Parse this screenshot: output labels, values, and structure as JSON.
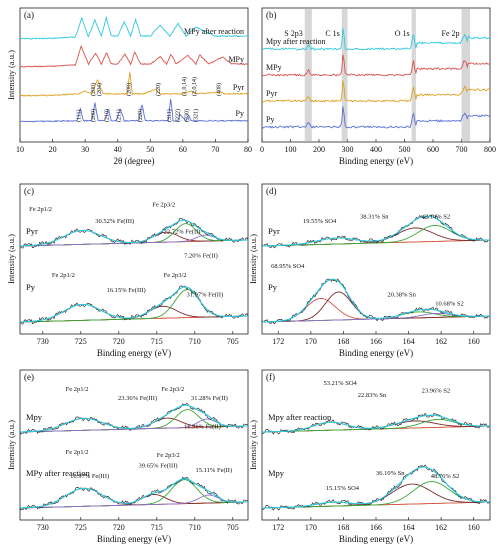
{
  "chart_data": [
    {
      "panel": "(a)",
      "type": "line",
      "xlabel": "2θ (degree)",
      "ylabel": "Intensity (a.u.)",
      "xlim": [
        10,
        80
      ],
      "xticks": [
        10,
        20,
        30,
        40,
        50,
        60,
        70,
        80
      ],
      "series": [
        {
          "name": "MPy after reaction",
          "color": "#2ec8e0",
          "x": [
            10,
            20,
            27,
            29,
            31,
            33,
            35,
            36.5,
            38,
            40,
            42,
            44,
            45.5,
            47,
            50,
            53,
            56,
            58.5,
            61,
            64,
            70,
            80
          ],
          "y": [
            0.3,
            0.35,
            0.5,
            2.6,
            0.5,
            2.4,
            0.6,
            2.7,
            0.6,
            0.6,
            2.2,
            0.6,
            2.5,
            0.6,
            0.6,
            1.8,
            0.6,
            2.0,
            0.6,
            1.6,
            0.6,
            0.6
          ]
        },
        {
          "name": "MPy",
          "color": "#d9534f",
          "x": [
            10,
            20,
            27,
            28.8,
            31,
            33.2,
            35,
            36.6,
            38,
            40,
            42.2,
            44,
            45.2,
            47,
            50,
            53,
            55,
            56.3,
            58,
            61.5,
            64,
            65.2,
            68,
            72.2,
            75,
            80
          ],
          "y": [
            0.3,
            0.35,
            0.5,
            2.6,
            0.6,
            1.8,
            0.6,
            1.9,
            0.6,
            0.6,
            1.7,
            0.6,
            2.0,
            0.6,
            0.6,
            1.4,
            0.6,
            1.7,
            0.6,
            1.6,
            0.6,
            1.6,
            0.6,
            1.4,
            0.6,
            0.6
          ]
        },
        {
          "name": "Pyr",
          "color": "#e0a020",
          "x": [
            10,
            20,
            28,
            30,
            32,
            33.8,
            35.5,
            40,
            43,
            43.7,
            44.5,
            48,
            51.7,
            53,
            60,
            62.5,
            64,
            71.5,
            73,
            80
          ],
          "y": [
            0.2,
            0.25,
            0.4,
            0.7,
            0.4,
            2.0,
            0.4,
            0.4,
            0.4,
            2.9,
            0.4,
            0.4,
            0.9,
            0.4,
            0.4,
            0.7,
            0.4,
            0.6,
            0.4,
            0.4
          ]
        },
        {
          "name": "Py",
          "color": "#5a6fd6",
          "x": [
            10,
            20,
            27.5,
            28.5,
            29.5,
            32,
            33,
            34,
            36,
            37.1,
            38,
            39.5,
            40.8,
            42,
            46.5,
            47.4,
            48.5,
            55.5,
            56.3,
            57,
            58.5,
            59,
            61,
            61.7,
            62.5,
            64.5,
            80
          ],
          "y": [
            0.2,
            0.25,
            0.3,
            1.6,
            0.3,
            0.3,
            2.3,
            0.3,
            0.3,
            1.6,
            0.3,
            0.3,
            1.6,
            0.3,
            0.3,
            2.2,
            0.3,
            0.3,
            2.8,
            0.3,
            0.3,
            1.0,
            0.3,
            1.0,
            0.3,
            0.3,
            0.3
          ]
        }
      ],
      "annotations": [
        {
          "text": "(200)",
          "x": 33
        },
        {
          "text": "(204)",
          "x": 34.8
        },
        {
          "text": "(208)",
          "x": 44
        },
        {
          "text": "(220)",
          "x": 53
        },
        {
          "text": "(1,0,14)",
          "x": 61
        },
        {
          "text": "(2,0,14)",
          "x": 64
        },
        {
          "text": "(408)",
          "x": 71.5
        },
        {
          "text": "(111)",
          "x": 28.5
        },
        {
          "text": "(200)",
          "x": 33
        },
        {
          "text": "(210)",
          "x": 37.1
        },
        {
          "text": "(211)",
          "x": 40.8
        },
        {
          "text": "(220)",
          "x": 47.4
        },
        {
          "text": "(311)",
          "x": 56.3
        },
        {
          "text": "(222)",
          "x": 59
        },
        {
          "text": "(230)",
          "x": 61.7
        },
        {
          "text": "(321)",
          "x": 64.5
        }
      ]
    },
    {
      "panel": "(b)",
      "type": "line",
      "xlabel": "Binding energy (eV)",
      "ylabel": "",
      "xlim": [
        0,
        800
      ],
      "xticks": [
        0,
        100,
        200,
        300,
        400,
        500,
        600,
        700,
        800
      ],
      "regions": [
        {
          "label": "S 2p3",
          "from": 150,
          "to": 175
        },
        {
          "label": "C 1s",
          "from": 280,
          "to": 300
        },
        {
          "label": "O 1s",
          "from": 525,
          "to": 540
        },
        {
          "label": "Fe 2p",
          "from": 700,
          "to": 730
        }
      ],
      "series": [
        {
          "name": "Mpy after reaction",
          "color": "#2ec8e0"
        },
        {
          "name": "MPy",
          "color": "#d9534f"
        },
        {
          "name": "Pyr",
          "color": "#e0a020"
        },
        {
          "name": "Py",
          "color": "#5a6fd6"
        }
      ]
    },
    {
      "panel": "(c)",
      "type": "line",
      "xlabel": "Binding energy (eV)",
      "ylabel": "Intensity (a.u.)",
      "xlim": [
        733,
        703
      ],
      "xticks": [
        730,
        725,
        720,
        715,
        710,
        705
      ],
      "labels": {
        "top": "Pyr",
        "bottom": "Py"
      },
      "annotations": [
        "Fe 2p1/2",
        "Fe 2p3/2",
        "30.52% Fe(III)",
        "22.72% Fe(II)",
        "7.20% Fe(II)",
        "Fe 2p1/2",
        "Fe 2p3/2",
        "16.15% Fe(III)",
        "31.97% Fe(II)"
      ]
    },
    {
      "panel": "(d)",
      "type": "line",
      "xlabel": "Binding energy (eV)",
      "ylabel": "Intensity (a.u.)",
      "xlim": [
        173,
        159
      ],
      "xticks": [
        172,
        170,
        168,
        166,
        164,
        162,
        160
      ],
      "labels": {
        "top": "Pyr",
        "bottom": "Py"
      },
      "annotations": [
        "19.55% SO4",
        "38.31% Sn",
        "42.14% S2",
        "68.95% SO4",
        "20.38% Sn",
        "10.68% S2"
      ]
    },
    {
      "panel": "(e)",
      "type": "line",
      "xlabel": "Binding energy (eV)",
      "ylabel": "Intensity (a.u.)",
      "xlim": [
        733,
        703
      ],
      "xticks": [
        730,
        725,
        720,
        715,
        710,
        705
      ],
      "labels": {
        "top": "Mpy",
        "bottom": "MPy after reaction"
      },
      "annotations": [
        "Fe 2p1/2",
        "23.36% Fe(III)",
        "Fe 2p3/2",
        "31.28% Fe(II)",
        "11.91% Fe(II)",
        "Fe 2p1/2",
        "10.97% Fe(III)",
        "39.65% Fe(III)",
        "Fe 2p3/2",
        "15.11% Fe(II)"
      ]
    },
    {
      "panel": "(f)",
      "type": "line",
      "xlabel": "Binding energy (eV)",
      "ylabel": "Intensity (a.u.)",
      "xlim": [
        173,
        159
      ],
      "xticks": [
        172,
        170,
        168,
        166,
        164,
        162,
        160
      ],
      "labels": {
        "top": "Mpy after reaction",
        "bottom": "Mpy"
      },
      "annotations": [
        "53.21% SO4",
        "22.83% Sn",
        "23.96% S2",
        "15.15% SO4",
        "36.10% Sn",
        "48.76% S2"
      ]
    }
  ]
}
